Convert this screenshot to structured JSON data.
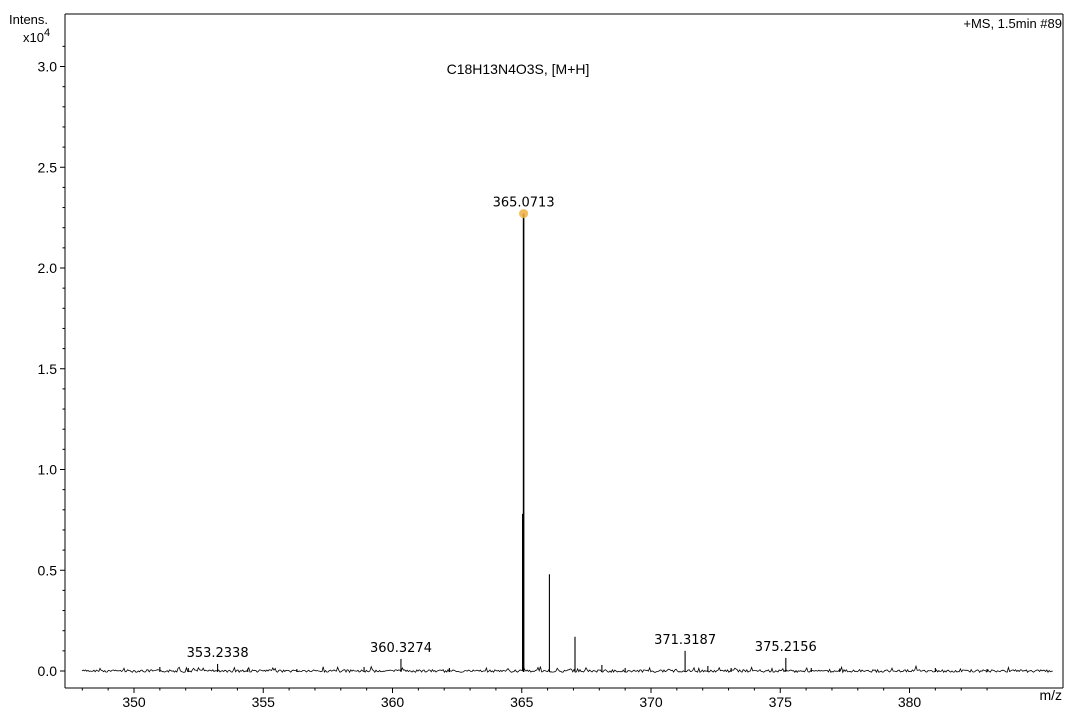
{
  "chart_data": {
    "type": "line",
    "title": "C18H13N4O3S, [M+H]",
    "header_right": "+MS, 1.5min #89",
    "ylabel": "Intens.",
    "yscale_label": "x10",
    "yscale_exponent": "4",
    "xlabel": "m/z",
    "xlim": [
      347.6,
      384.0
    ],
    "ylim": [
      -0.05,
      3.2
    ],
    "x_ticks": [
      350,
      355,
      360,
      365,
      370,
      375,
      380
    ],
    "x_tick_labels": [
      "350",
      "355",
      "360",
      "365",
      "370",
      "375",
      "380"
    ],
    "y_ticks": [
      0.0,
      0.5,
      1.0,
      1.5,
      2.0,
      2.5,
      3.0
    ],
    "y_tick_labels": [
      "0.0",
      "0.5",
      "1.0",
      "1.5",
      "2.0",
      "2.5",
      "3.0"
    ],
    "peaks": [
      {
        "mz": 351.0,
        "intensity": 0.02
      },
      {
        "mz": 352.1,
        "intensity": 0.015
      },
      {
        "mz": 353.2338,
        "intensity": 0.035,
        "label": "353.2338"
      },
      {
        "mz": 354.4,
        "intensity": 0.012
      },
      {
        "mz": 356.3,
        "intensity": 0.01
      },
      {
        "mz": 358.9,
        "intensity": 0.02
      },
      {
        "mz": 360.3274,
        "intensity": 0.06,
        "label": "360.3274"
      },
      {
        "mz": 362.2,
        "intensity": 0.015
      },
      {
        "mz": 365.0713,
        "intensity": 2.27,
        "label": "365.0713",
        "marker": true
      },
      {
        "mz": 366.07,
        "intensity": 0.48
      },
      {
        "mz": 367.06,
        "intensity": 0.17
      },
      {
        "mz": 368.1,
        "intensity": 0.03
      },
      {
        "mz": 369.0,
        "intensity": 0.015
      },
      {
        "mz": 371.3187,
        "intensity": 0.1,
        "label": "371.3187"
      },
      {
        "mz": 372.2,
        "intensity": 0.025
      },
      {
        "mz": 373.1,
        "intensity": 0.015
      },
      {
        "mz": 375.2156,
        "intensity": 0.065,
        "label": "375.2156"
      },
      {
        "mz": 376.2,
        "intensity": 0.015
      },
      {
        "mz": 377.3,
        "intensity": 0.012
      },
      {
        "mz": 381.0,
        "intensity": 0.015
      },
      {
        "mz": 383.0,
        "intensity": 0.01
      }
    ],
    "colors": {
      "line": "#000000",
      "marker": "#f0b040",
      "axis": "#000000"
    }
  }
}
